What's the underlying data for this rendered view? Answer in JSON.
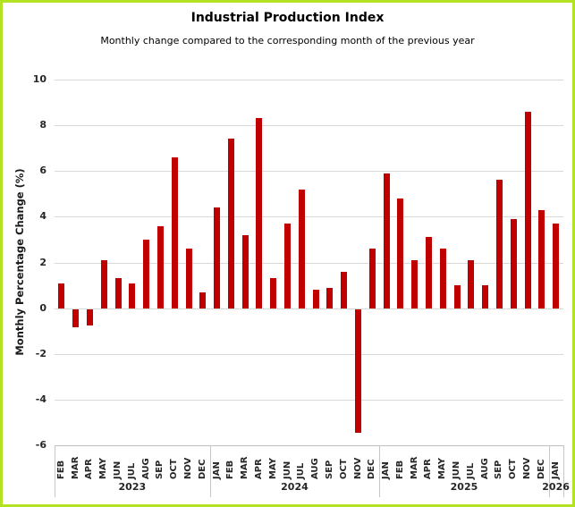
{
  "frame": {
    "border_color": "#b2e222",
    "background": "#ffffff"
  },
  "header": {
    "title": "Industrial Production Index",
    "subtitle": "Monthly change compared to the corresponding month of the previous year"
  },
  "chart_data": {
    "type": "bar",
    "title": "Industrial Production Index",
    "subtitle": "Monthly change compared to the corresponding month of the previous year",
    "xlabel": "",
    "ylabel": "Monthly Percentage Change (%)",
    "ylim": [
      -6,
      10
    ],
    "yticks": [
      10,
      8,
      6,
      4,
      2,
      0,
      -2,
      -4,
      -6
    ],
    "grid": true,
    "legend": false,
    "bar_color": "#c00000",
    "gridline_color": "#d9d9d9",
    "categories": [
      "FEB",
      "MAR",
      "APR",
      "MAY",
      "JUN",
      "JUL",
      "AUG",
      "SEP",
      "OCT",
      "NOV",
      "DEC",
      "JAN",
      "FEB",
      "MAR",
      "APR",
      "MAY",
      "JUN",
      "JUL",
      "AUG",
      "SEP",
      "OCT",
      "NOV",
      "DEC",
      "JAN",
      "FEB",
      "MAR",
      "APR",
      "MAY",
      "JUN",
      "JUL",
      "AUG",
      "SEP",
      "OCT",
      "NOV",
      "DEC",
      "JAN"
    ],
    "values": [
      1.1,
      -0.8,
      -0.7,
      2.1,
      1.3,
      1.1,
      3.0,
      3.6,
      6.6,
      2.6,
      0.7,
      4.4,
      7.4,
      3.2,
      8.3,
      1.3,
      3.7,
      5.2,
      0.8,
      0.9,
      1.6,
      -5.4,
      2.6,
      5.9,
      4.8,
      2.1,
      3.1,
      2.6,
      1.0,
      2.1,
      1.0,
      5.6,
      3.9,
      8.6,
      4.3,
      3.7
    ],
    "year_groups": [
      {
        "label": "2023",
        "count": 11
      },
      {
        "label": "2024",
        "count": 12
      },
      {
        "label": "2025",
        "count": 12
      },
      {
        "label": "2026",
        "count": 1
      }
    ]
  }
}
